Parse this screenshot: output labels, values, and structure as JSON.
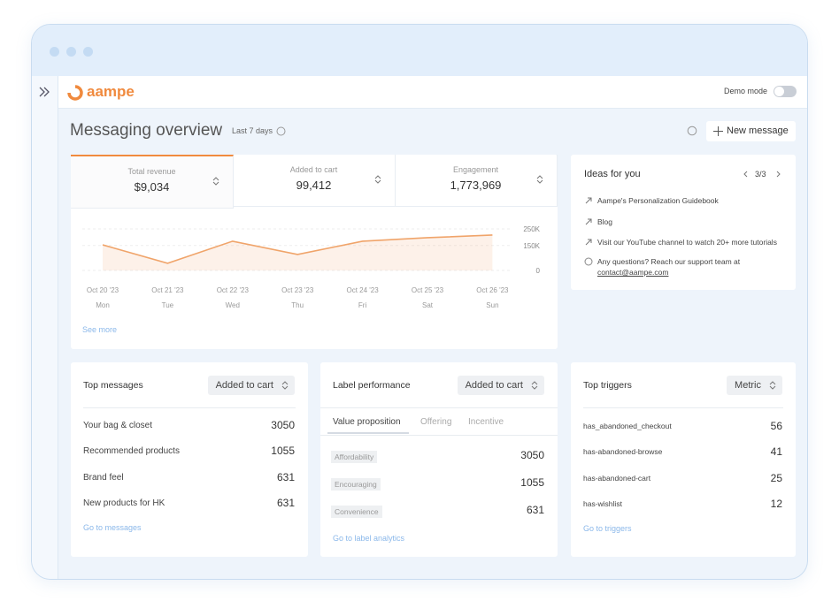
{
  "app": {
    "brand": "aampe",
    "demo_mode": "Demo mode"
  },
  "header": {
    "title": "Messaging overview",
    "period": "Last 7 days",
    "button": "New message"
  },
  "kpis": [
    {
      "label": "Total revenue",
      "value": "$9,034"
    },
    {
      "label": "Added to cart",
      "value": "99,412"
    },
    {
      "label": "Engagement",
      "value": "1,773,969"
    }
  ],
  "chart_data": {
    "type": "line",
    "categories": [
      "Oct 20 '23",
      "Oct 21 '23",
      "Oct 22 '23",
      "Oct 23 '23",
      "Oct 24 '23",
      "Oct 25 '23",
      "Oct 26 '23"
    ],
    "weekdays": [
      "Mon",
      "Tue",
      "Wed",
      "Thu",
      "Fri",
      "Sat",
      "Sun"
    ],
    "values": [
      154000,
      43000,
      176000,
      96000,
      176000,
      197000,
      213000
    ],
    "color": "#f0a46a",
    "ylim": [
      0,
      250000
    ],
    "yticks": [
      0,
      {
        "value": 150000,
        "label": "150K"
      },
      {
        "value": 250000,
        "label": "250K"
      }
    ],
    "grid": true
  },
  "see_more": "See more",
  "ideas": {
    "title": "Ideas for you",
    "pager": "3/3",
    "items": [
      "Aampe's Personalization Guidebook",
      "Blog",
      "Visit our YouTube channel to watch 20+ more tutorials"
    ],
    "support": {
      "text": "Any questions? Reach our support team at",
      "email": "contact@aampe.com"
    }
  },
  "top_messages": {
    "title": "Top messages",
    "select": "Added to cart",
    "rows": [
      [
        "Your bag & closet",
        3050
      ],
      [
        "Recommended products",
        1055
      ],
      [
        "Brand feel",
        631
      ],
      [
        "New products for HK",
        631
      ]
    ],
    "link": "Go to messages"
  },
  "label_performance": {
    "title": "Label performance",
    "select": "Added to cart",
    "tabs": [
      "Value proposition",
      "Offering",
      "Incentive"
    ],
    "rows": [
      [
        "Affordability",
        3050
      ],
      [
        "Encouraging",
        1055
      ],
      [
        "Convenience",
        631
      ]
    ],
    "link": "Go to label analytics"
  },
  "top_triggers": {
    "title": "Top triggers",
    "select": "Metric",
    "rows": [
      [
        "has_abandoned_checkout",
        56
      ],
      [
        "has-abandoned-browse",
        41
      ],
      [
        "has-abandoned-cart",
        25
      ],
      [
        "has-wishlist",
        12
      ]
    ],
    "link": "Go to triggers"
  }
}
